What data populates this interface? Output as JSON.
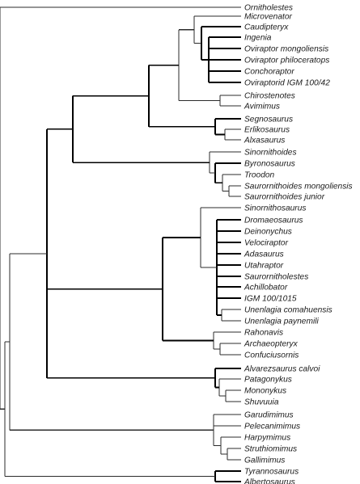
{
  "cladogram": {
    "taxa": [
      "Ornitholestes",
      "Microvenator",
      "Caudipteryx",
      "Ingenia",
      "Oviraptor mongoliensis",
      "Oviraptor philoceratops",
      "Conchoraptor",
      "Oviraptorid IGM 100/42",
      "Chirostenotes",
      "Avimimus",
      "Segnosaurus",
      "Erlikosaurus",
      "Alxasaurus",
      "Sinornithoides",
      "Byronosaurus",
      "Troodon",
      "Saurornithoides mongoliensis",
      "Saurornithoides junior",
      "Sinornithosaurus",
      "Dromaeosaurus",
      "Deinonychus",
      "Velociraptor",
      "Adasaurus",
      "Utahraptor",
      "Saurornitholestes",
      "Achillobator",
      "IGM 100/1015",
      "Unenlagia comahuensis",
      "Unenlagia paynemili",
      "Rahonavis",
      "Archaeopteryx",
      "Confuciusornis",
      "Alvarezsaurus calvoi",
      "Patagonykus",
      "Mononykus",
      "Shuvuuia",
      "Garudimimus",
      "Pelecanimimus",
      "Harpymimus",
      "Struthiomimus",
      "Gallimimus",
      "Tyrannosaurus",
      "Albertosaurus"
    ]
  }
}
